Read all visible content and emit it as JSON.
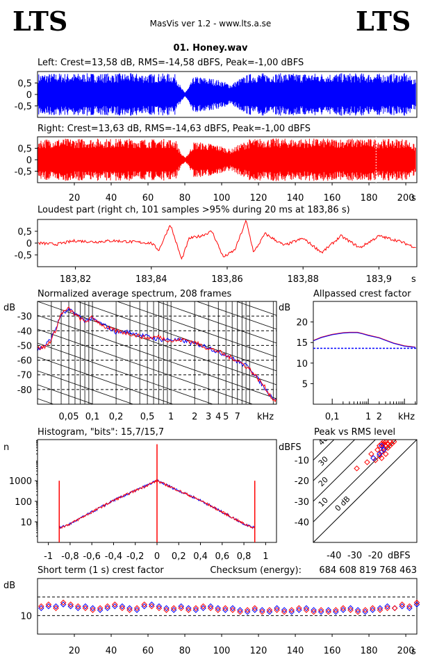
{
  "header": {
    "logo_left": "LTS",
    "logo_right": "LTS",
    "app_title": "MasVis ver 1.2 - www.lts.a.se",
    "file_name": "01. Honey.wav"
  },
  "checksum_label": "Checksum (energy):",
  "checksum_value": "684 608 819 768 463",
  "colors": {
    "left": "#0000ff",
    "right": "#ff0000",
    "axis": "#000000"
  },
  "chart_data": [
    {
      "id": "left",
      "type": "area",
      "title": "Left: Crest=13,58 dB, RMS=-14,58 dBFS, Peak=-1,00 dBFS",
      "ylim": [
        -1,
        1
      ],
      "yticks": [
        "0,5",
        "0",
        "-0,5"
      ],
      "ytick_values": [
        0.5,
        0,
        -0.5
      ],
      "xlim": [
        0,
        206
      ],
      "envelope_x": [
        0,
        10,
        20,
        30,
        40,
        50,
        60,
        70,
        75,
        78,
        80,
        82,
        85,
        90,
        95,
        100,
        105,
        110,
        115,
        120,
        130,
        140,
        150,
        160,
        170,
        180,
        190,
        200,
        206
      ],
      "envelope_amp": [
        0.9,
        0.93,
        0.92,
        0.93,
        0.92,
        0.93,
        0.9,
        0.92,
        0.88,
        0.3,
        0.1,
        0.3,
        0.8,
        0.75,
        0.7,
        0.6,
        0.45,
        0.7,
        0.9,
        0.93,
        0.93,
        0.92,
        0.93,
        0.92,
        0.93,
        0.92,
        0.9,
        0.93,
        0.6
      ]
    },
    {
      "id": "right",
      "type": "area",
      "title": "Right: Crest=13,63 dB, RMS=-14,63 dBFS, Peak=-1,00 dBFS",
      "ylim": [
        -1,
        1
      ],
      "yticks": [
        "0,5",
        "0",
        "-0,5"
      ],
      "ytick_values": [
        0.5,
        0,
        -0.5
      ],
      "xlim": [
        0,
        206
      ],
      "xticks": [
        "20",
        "40",
        "60",
        "80",
        "100",
        "120",
        "140",
        "160",
        "180",
        "200"
      ],
      "xtick_values": [
        20,
        40,
        60,
        80,
        100,
        120,
        140,
        160,
        180,
        200
      ],
      "xunit": "s",
      "loudest_marker_x": 183.86,
      "envelope_x": [
        0,
        10,
        20,
        30,
        40,
        50,
        60,
        70,
        75,
        78,
        80,
        82,
        85,
        90,
        95,
        100,
        105,
        110,
        115,
        120,
        130,
        140,
        150,
        160,
        170,
        180,
        190,
        200,
        206
      ],
      "envelope_amp": [
        0.9,
        0.93,
        0.92,
        0.93,
        0.92,
        0.93,
        0.9,
        0.92,
        0.88,
        0.3,
        0.1,
        0.3,
        0.8,
        0.75,
        0.7,
        0.6,
        0.45,
        0.7,
        0.9,
        0.93,
        0.93,
        0.92,
        0.93,
        0.92,
        0.93,
        0.92,
        0.9,
        0.93,
        0.6
      ]
    },
    {
      "id": "loudest",
      "type": "line",
      "title": "Loudest part (right ch, 101 samples >95% during 20 ms at 183,86 s)",
      "ylim": [
        -1,
        1
      ],
      "yticks": [
        "0,5",
        "0",
        "-0,5"
      ],
      "ytick_values": [
        0.5,
        0,
        -0.5
      ],
      "xlim": [
        183.81,
        183.91
      ],
      "xticks": [
        "183,82",
        "183,84",
        "183,86",
        "183,88",
        "183,9"
      ],
      "xtick_values": [
        183.82,
        183.84,
        183.86,
        183.88,
        183.9
      ],
      "xunit": "s",
      "x": [
        183.81,
        183.815,
        183.82,
        183.825,
        183.83,
        183.835,
        183.84,
        183.842,
        183.845,
        183.848,
        183.85,
        183.853,
        183.856,
        183.859,
        183.862,
        183.865,
        183.867,
        183.87,
        183.875,
        183.88,
        183.885,
        183.89,
        183.895,
        183.9,
        183.905,
        183.91
      ],
      "y": [
        0.0,
        -0.05,
        0.1,
        0.05,
        0.1,
        0.05,
        0.0,
        -0.3,
        0.8,
        -0.7,
        0.2,
        0.3,
        0.5,
        -0.6,
        -0.3,
        0.95,
        -0.4,
        0.4,
        -0.1,
        0.2,
        -0.4,
        0.3,
        -0.2,
        0.3,
        0.1,
        -0.2
      ]
    },
    {
      "id": "spectrum",
      "type": "line",
      "title": "Normalized average spectrum, 208 frames",
      "ylabel": "dB",
      "ylim": [
        -90,
        -20
      ],
      "yticks": [
        "-30",
        "-40",
        "-50",
        "-60",
        "-70",
        "-80"
      ],
      "ytick_values": [
        -30,
        -40,
        -50,
        -60,
        -70,
        -80
      ],
      "xscale": "log",
      "xlim": [
        0.02,
        22
      ],
      "xticks": [
        "0,05",
        "0,1",
        "0,2",
        "0,5",
        "1",
        "2",
        "3",
        "4",
        "5",
        "7"
      ],
      "xtick_values": [
        0.05,
        0.1,
        0.2,
        0.5,
        1,
        2,
        3,
        4,
        5,
        7
      ],
      "xunit": "kHz",
      "x": [
        0.02,
        0.025,
        0.03,
        0.035,
        0.04,
        0.05,
        0.06,
        0.08,
        0.1,
        0.15,
        0.2,
        0.3,
        0.5,
        0.7,
        1,
        1.5,
        2,
        3,
        4,
        5,
        7,
        10,
        15,
        20
      ],
      "series": [
        {
          "color": "#ff0000",
          "y": [
            -52,
            -51,
            -46,
            -38,
            -28,
            -25,
            -29,
            -34,
            -31,
            -38,
            -40,
            -42,
            -45,
            -44,
            -47,
            -46,
            -48,
            -52,
            -54,
            -57,
            -60,
            -66,
            -77,
            -87
          ]
        },
        {
          "color": "#0000ff",
          "y": [
            -53,
            -50,
            -45,
            -37,
            -29,
            -26,
            -28,
            -33,
            -32,
            -37,
            -41,
            -41,
            -44,
            -46,
            -46,
            -47,
            -49,
            -51,
            -55,
            -56,
            -61,
            -65,
            -78,
            -86
          ]
        }
      ]
    },
    {
      "id": "allpassed",
      "type": "line",
      "title": "Allpassed crest factor",
      "ylabel": "dB",
      "ylim": [
        0,
        25
      ],
      "yticks": [
        "20",
        "15",
        "10",
        "5"
      ],
      "ytick_values": [
        20,
        15,
        10,
        5
      ],
      "xscale": "log",
      "xlim": [
        0.03,
        22
      ],
      "xticks": [
        "0,1",
        "1",
        "2"
      ],
      "xtick_values": [
        0.1,
        1,
        2
      ],
      "xunit": "kHz",
      "reference_line": 13.6,
      "x": [
        0.03,
        0.05,
        0.1,
        0.2,
        0.3,
        0.5,
        0.7,
        1,
        2,
        3,
        5,
        10,
        20
      ],
      "series": [
        {
          "color": "#ff0000",
          "y": [
            15.5,
            16.3,
            17.0,
            17.4,
            17.5,
            17.5,
            17.2,
            16.8,
            16.2,
            15.6,
            14.9,
            14.2,
            13.9
          ]
        },
        {
          "color": "#0000ff",
          "y": [
            15.4,
            16.2,
            16.9,
            17.3,
            17.4,
            17.4,
            17.1,
            16.7,
            16.1,
            15.5,
            14.8,
            14.1,
            13.8
          ]
        }
      ]
    },
    {
      "id": "histogram",
      "type": "line",
      "title": "Histogram, \"bits\": 15,7/15,7",
      "ylabel": "n",
      "yscale": "log",
      "ylim": [
        1,
        100000
      ],
      "yticks": [
        "1000",
        "100",
        "10"
      ],
      "ytick_values": [
        1000,
        100,
        10
      ],
      "xlim": [
        -1.1,
        1.1
      ],
      "xticks": [
        "-1",
        "-0,8",
        "-0,6",
        "-0,4",
        "-0,2",
        "0",
        "0,2",
        "0,4",
        "0,6",
        "0,8",
        "1"
      ],
      "xtick_values": [
        -1,
        -0.8,
        -0.6,
        -0.4,
        -0.2,
        0,
        0.2,
        0.4,
        0.6,
        0.8,
        1
      ],
      "x": [
        -0.9,
        -0.8,
        -0.6,
        -0.4,
        -0.2,
        0,
        0.2,
        0.4,
        0.6,
        0.8,
        0.9
      ],
      "y": [
        5,
        8,
        30,
        110,
        330,
        1000,
        330,
        110,
        30,
        8,
        5
      ],
      "spikes_x": [
        -0.9,
        0,
        0.9
      ],
      "spikes_top": [
        1000,
        60000,
        1000
      ]
    },
    {
      "id": "peak_rms",
      "type": "scatter",
      "title": "Peak vs RMS level",
      "xlabel": "dBFS",
      "ylabel": "dBFS",
      "xlim": [
        -50,
        0
      ],
      "ylim": [
        -50,
        0
      ],
      "xticks": [
        "-40",
        "-30",
        "-20"
      ],
      "xtick_values": [
        -40,
        -30,
        -20
      ],
      "yticks": [
        "-10",
        "-20",
        "-30",
        "-40"
      ],
      "ytick_values": [
        -10,
        -20,
        -30,
        -40
      ],
      "diagonal_labels": [
        "40",
        "30",
        "20",
        "10",
        "0 dB"
      ],
      "diagonal_offsets": [
        40,
        30,
        20,
        10,
        0
      ],
      "red_x": [
        -18,
        -17,
        -16,
        -15,
        -14,
        -13,
        -16,
        -17,
        -15,
        -14,
        -18,
        -19,
        -16,
        -15,
        -13,
        -12,
        -17,
        -20,
        -22,
        -24,
        -29,
        -11,
        -16,
        -18
      ],
      "red_y": [
        -3,
        -2,
        -4,
        -3,
        -2,
        -1,
        -5,
        -6,
        -7,
        -4,
        -8,
        -5,
        -2,
        -1,
        -3,
        -2,
        -9,
        -10,
        -7,
        -11,
        -14,
        -1,
        -1,
        -3
      ],
      "blue_x": [
        -21,
        -18,
        -16,
        -17
      ],
      "blue_y": [
        -9,
        -7,
        -5,
        -3
      ]
    },
    {
      "id": "short_crest",
      "type": "scatter",
      "title": "Short term (1 s) crest factor",
      "ylabel": "dB",
      "ylim": [
        5,
        20
      ],
      "yticks": [
        "10"
      ],
      "ytick_values": [
        10
      ],
      "dashed_lines": [
        10,
        15
      ],
      "xlim": [
        0,
        206
      ],
      "xticks": [
        "20",
        "40",
        "60",
        "80",
        "100",
        "120",
        "140",
        "160",
        "180",
        "200"
      ],
      "xtick_values": [
        20,
        40,
        60,
        80,
        100,
        120,
        140,
        160,
        180,
        200
      ],
      "xunit": "s",
      "x": [
        2,
        6,
        10,
        14,
        18,
        22,
        26,
        30,
        34,
        38,
        42,
        46,
        50,
        54,
        58,
        62,
        66,
        70,
        74,
        78,
        82,
        86,
        90,
        94,
        98,
        102,
        106,
        110,
        114,
        118,
        122,
        126,
        130,
        134,
        138,
        142,
        146,
        150,
        154,
        158,
        162,
        166,
        170,
        174,
        178,
        182,
        186,
        190,
        194,
        198,
        202,
        206
      ],
      "red_y": [
        12.5,
        13,
        12,
        13.5,
        13,
        12.5,
        12,
        11.5,
        12,
        12.5,
        13,
        12,
        11.5,
        12,
        13,
        12.5,
        12,
        11.5,
        12,
        12,
        11.5,
        12,
        12.5,
        12,
        11.5,
        12,
        11.5,
        11,
        11.5,
        12,
        11,
        11.5,
        11.5,
        11,
        11.5,
        12,
        11.5,
        11,
        11.5,
        11,
        11.5,
        12,
        11.5,
        11,
        11.5,
        12,
        11.5,
        12,
        12,
        13,
        12.5,
        13.5
      ],
      "blue_y": [
        12,
        12.5,
        12.5,
        13,
        12.5,
        12,
        12.5,
        12,
        11.5,
        12,
        12.5,
        12.5,
        12,
        11.5,
        12.5,
        13,
        12.5,
        12,
        11.5,
        12.5,
        12,
        11.5,
        12,
        12.5,
        12,
        11.5,
        12,
        11.5,
        11,
        11.5,
        11.5,
        11,
        12,
        11.5,
        11,
        11.5,
        12,
        11.5,
        11,
        11.5,
        11,
        11.5,
        12,
        11.5,
        11,
        11.5,
        12,
        12.5,
        12,
        12.5,
        12,
        13
      ]
    }
  ]
}
